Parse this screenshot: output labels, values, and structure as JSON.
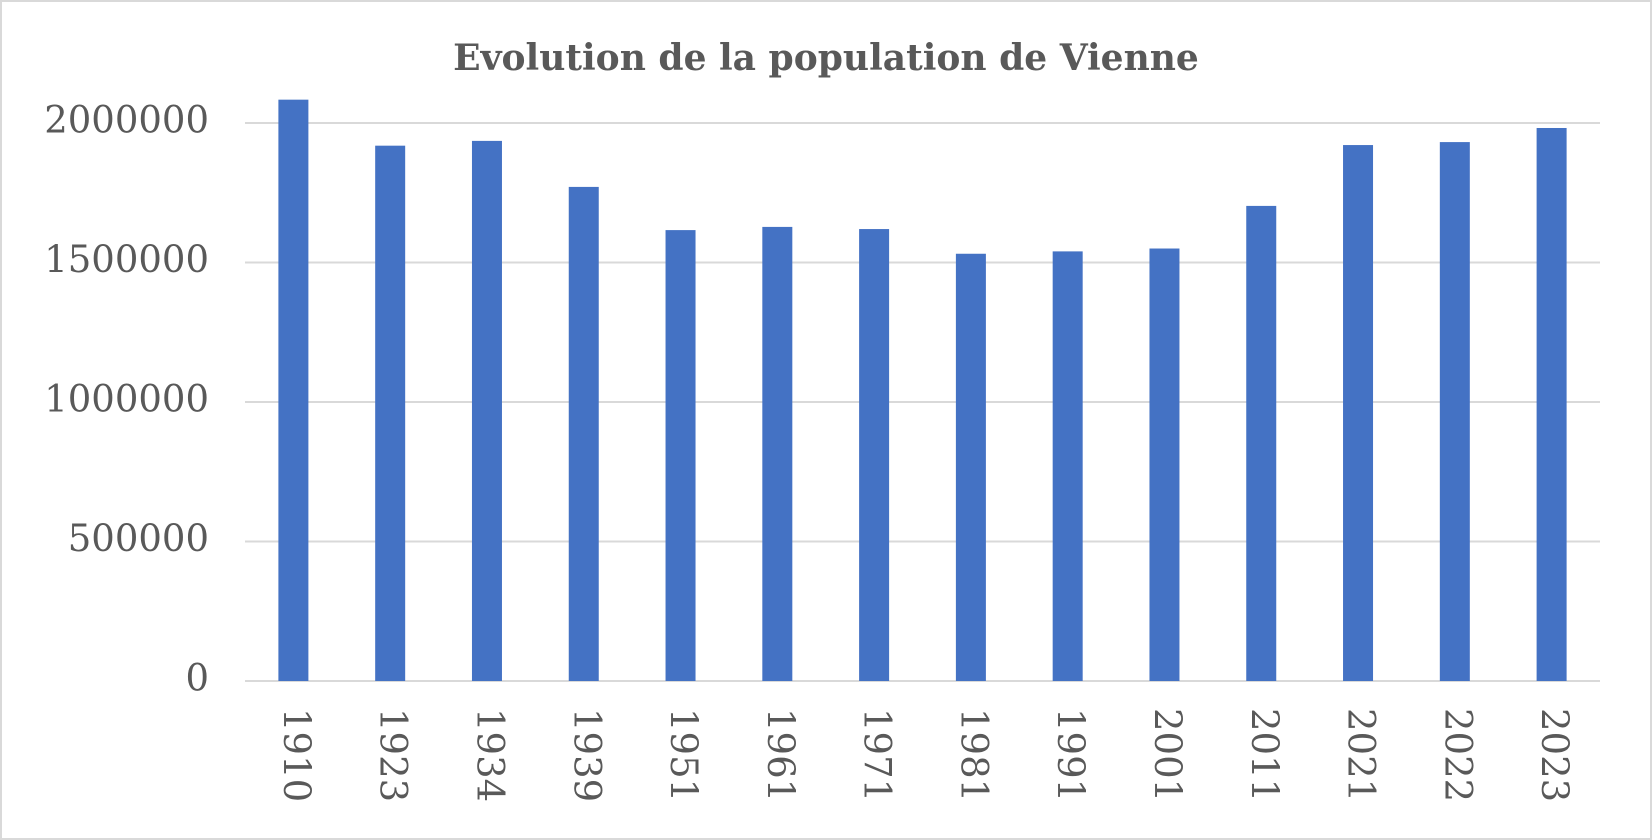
{
  "chart_data": {
    "type": "bar",
    "title": "Evolution de la population de Vienne",
    "categories": [
      "1910",
      "1923",
      "1934",
      "1939",
      "1951",
      "1961",
      "1971",
      "1981",
      "1991",
      "2001",
      "2011",
      "2021",
      "2022",
      "2023"
    ],
    "values": [
      2083630,
      1918720,
      1935881,
      1770938,
      1616125,
      1627566,
      1619885,
      1531346,
      1539848,
      1550123,
      1702855,
      1920949,
      1931593,
      1982097
    ],
    "color": "#4472c4",
    "ylim": [
      0,
      2000000
    ],
    "yticks": [
      0,
      500000,
      1000000,
      1500000,
      2000000
    ],
    "grid": true
  }
}
